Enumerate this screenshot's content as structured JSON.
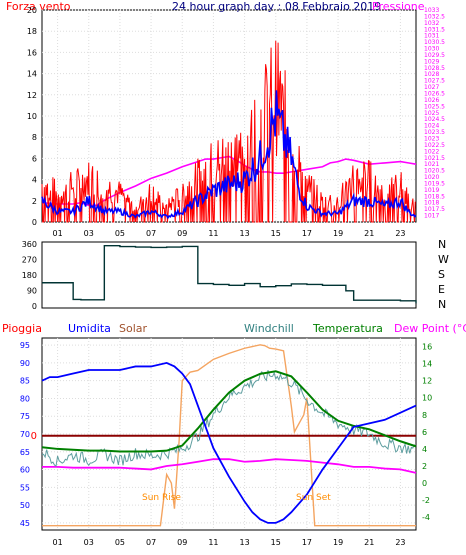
{
  "chart_data": [
    {
      "type": "line",
      "title": "24 hour graph day : 08 Febbraio 2019",
      "series": [
        {
          "name": "Forza vento",
          "color": "#ff0000"
        },
        {
          "name": "",
          "color": "#0000ff"
        },
        {
          "name": "Pressione",
          "color": "#ff00ff"
        }
      ],
      "x_ticks": [
        "01",
        "03",
        "05",
        "07",
        "09",
        "11",
        "13",
        "15",
        "17",
        "19",
        "21",
        "23"
      ],
      "x_range": [
        0,
        24
      ],
      "y_left": {
        "range": [
          0,
          20
        ],
        "ticks": [
          "0",
          "2",
          "4",
          "6",
          "8",
          "10",
          "12",
          "14",
          "16",
          "18",
          "20"
        ]
      },
      "y_right": {
        "range": [
          1016.5,
          1033
        ],
        "ticks": [
          "1017",
          "1017.5",
          "1018",
          "1018.5",
          "1019",
          "1019.5",
          "1020",
          "1020.5",
          "1021",
          "1021.5",
          "1022",
          "1022.5",
          "1023",
          "1023.5",
          "1024",
          "1024.5",
          "1025",
          "1025.5",
          "1026",
          "1026.5",
          "1027",
          "1027.5",
          "1028",
          "1028.5",
          "1029",
          "1029.5",
          "1030",
          "1030.5",
          "1031",
          "1031.5",
          "1032",
          "1032.5",
          "1033"
        ],
        "tick_color": "#ff00ff"
      },
      "pressure": {
        "x": [
          0,
          1,
          2,
          2.5,
          3,
          3.5,
          4,
          5,
          6,
          7,
          8,
          9,
          10,
          10.5,
          11,
          11.5,
          12,
          12.5,
          13,
          13.5,
          14,
          14.5,
          15,
          15.5,
          16,
          17,
          18,
          18.5,
          19,
          19.5,
          20,
          21,
          22,
          23,
          23.5,
          24
        ],
        "y": [
          1018,
          1017.9,
          1017.9,
          1018,
          1017.8,
          1017.8,
          1018.2,
          1018.8,
          1019.3,
          1019.9,
          1020.3,
          1020.8,
          1021.2,
          1021.4,
          1021.4,
          1021.5,
          1021.6,
          1021.3,
          1020.9,
          1020.6,
          1020.4,
          1020.4,
          1020.3,
          1020.3,
          1020.4,
          1020.6,
          1020.8,
          1021.1,
          1021.2,
          1021.4,
          1021.3,
          1021,
          1021.1,
          1021.2,
          1021.1,
          1021
        ]
      },
      "wind_envelope": {
        "x": [
          0,
          1,
          2,
          3,
          4,
          5,
          6,
          7,
          8,
          9,
          10,
          11,
          12,
          13,
          13.5,
          14,
          14.5,
          15,
          15.5,
          16,
          16.5,
          17,
          18,
          19,
          20,
          21,
          22,
          23,
          23.5,
          24
        ],
        "y": [
          5,
          4,
          5,
          6,
          5,
          4,
          2,
          4,
          2,
          4,
          6,
          8,
          9,
          10,
          12,
          14,
          16,
          18,
          15,
          12,
          8,
          5,
          3,
          3,
          6,
          6,
          4,
          5,
          3,
          2
        ]
      },
      "wind_avg": {
        "x": [
          0,
          1,
          2,
          3,
          4,
          5,
          6,
          7,
          8,
          9,
          10,
          11,
          12,
          13,
          13.5,
          14,
          14.5,
          15,
          15.5,
          16,
          16.5,
          17,
          18,
          19,
          20,
          21,
          22,
          23,
          23.5,
          24
        ],
        "y": [
          2,
          1,
          1,
          2,
          1,
          1,
          0.5,
          1,
          0.5,
          1,
          2,
          3,
          3.5,
          4,
          5,
          6,
          8,
          10,
          8,
          6,
          3,
          1.5,
          0.8,
          0.8,
          2,
          2,
          1.5,
          2,
          1,
          0.5
        ]
      }
    },
    {
      "type": "line",
      "series": [
        {
          "name": "",
          "color": "#003333"
        }
      ],
      "x_range": [
        0,
        24
      ],
      "y_range": [
        0,
        360
      ],
      "y_ticks": [
        "0",
        "90",
        "180",
        "270",
        "360"
      ],
      "right_labels": [
        "N",
        "W",
        "S",
        "E",
        "N"
      ],
      "direction": {
        "x": [
          0,
          1,
          2,
          2.5,
          3,
          4,
          5,
          6,
          7,
          8,
          9,
          9.5,
          10,
          11,
          12,
          13,
          14,
          15,
          16,
          17,
          18,
          19,
          19.5,
          20,
          21,
          22,
          23,
          24
        ],
        "y": [
          135,
          135,
          38,
          36,
          36,
          350,
          345,
          342,
          340,
          342,
          346,
          346,
          130,
          125,
          120,
          130,
          112,
          118,
          128,
          125,
          120,
          120,
          88,
          34,
          34,
          34,
          30,
          15
        ]
      }
    },
    {
      "type": "line",
      "labels": {
        "pioggia": "Pioggia",
        "umidita": "Umidita",
        "solar": "Solar",
        "windchill": "Windchill",
        "temperatura": "Temperatura",
        "dewpoint": "Dew Point (°C)"
      },
      "annotations": [
        "Sun Rise",
        "Sun Set"
      ],
      "x_range": [
        0,
        24
      ],
      "y_left": {
        "range": [
          43,
          97
        ],
        "ticks": [
          "45",
          "50",
          "55",
          "60",
          "65",
          "70",
          "75",
          "80",
          "85",
          "90",
          "95"
        ],
        "tick_color": "#0000ff"
      },
      "y_right": {
        "range": [
          -5.5,
          17
        ],
        "ticks": [
          "-4",
          "-2",
          "0",
          "2",
          "4",
          "6",
          "8",
          "10",
          "12",
          "14",
          "16"
        ],
        "tick_color": "#008000"
      },
      "rain_marker": {
        "label": "0",
        "value": 69.5
      },
      "humidity": {
        "x": [
          0,
          0.5,
          1,
          2,
          3,
          4,
          5,
          6,
          7,
          8,
          8.5,
          9,
          9.5,
          10,
          10.5,
          11,
          12,
          13,
          13.5,
          14,
          14.5,
          15,
          15.5,
          16,
          17,
          18,
          19,
          20,
          21,
          22,
          23,
          24
        ],
        "y": [
          85,
          86,
          86,
          87,
          88,
          88,
          88,
          89,
          89,
          90,
          89,
          87,
          84,
          78,
          72,
          66,
          58,
          51,
          48,
          46,
          45,
          45,
          46,
          48,
          53,
          60,
          66,
          72,
          73,
          74,
          76,
          78
        ]
      },
      "temperatura": {
        "x": [
          0,
          1,
          2,
          3,
          4,
          5,
          6,
          7,
          8,
          9,
          10,
          11,
          12,
          13,
          14,
          15,
          16,
          17,
          18,
          19,
          20,
          21,
          22,
          23,
          24
        ],
        "y": [
          4.2,
          4,
          3.9,
          3.8,
          3.8,
          3.7,
          3.7,
          3.7,
          3.8,
          4.4,
          6.4,
          8.6,
          10.6,
          12,
          12.8,
          13.1,
          12.5,
          10.6,
          8.6,
          7.3,
          6.7,
          6.3,
          5.6,
          4.9,
          4.3
        ]
      },
      "windchill": {
        "x": [
          0,
          1,
          2,
          3,
          4,
          5,
          6,
          7,
          8,
          9,
          10,
          11,
          12,
          13,
          14,
          15,
          16,
          17,
          18,
          19,
          20,
          21,
          22,
          23,
          24
        ],
        "y": [
          3.8,
          2.5,
          3.3,
          2.7,
          3.4,
          2.6,
          3.5,
          3.2,
          3.5,
          4,
          5.5,
          8,
          10.2,
          11.3,
          12.3,
          12.8,
          11.8,
          9.8,
          8.2,
          7,
          6.2,
          5.8,
          4.6,
          4.2,
          3.9
        ]
      },
      "dewpoint": {
        "x": [
          0,
          1,
          2,
          3,
          4,
          5,
          6,
          7,
          8,
          9,
          10,
          11,
          12,
          13,
          14,
          15,
          16,
          17,
          18,
          19,
          20,
          21,
          22,
          23,
          24
        ],
        "y": [
          1.9,
          1.9,
          1.8,
          1.8,
          1.8,
          1.8,
          1.7,
          1.6,
          2,
          2.2,
          2.5,
          2.8,
          2.8,
          2.5,
          2.6,
          2.8,
          2.7,
          2.6,
          2.4,
          2.2,
          1.9,
          1.9,
          1.7,
          1.6,
          1.2
        ]
      },
      "solar": {
        "x": [
          0,
          7.6,
          7.8,
          8,
          8.3,
          8.5,
          8.8,
          9,
          9.5,
          10,
          11,
          12,
          13,
          13.5,
          14,
          14.3,
          14.6,
          15,
          15.5,
          16,
          16.2,
          16.5,
          16.8,
          17,
          17.5,
          18,
          24
        ],
        "y": [
          -5,
          -5,
          -2,
          1,
          0,
          -3,
          5,
          12,
          13,
          13.2,
          14.5,
          15.2,
          15.8,
          16,
          16.2,
          16.1,
          15.8,
          15.7,
          15.5,
          9,
          6,
          7,
          8,
          10,
          -5,
          -5,
          -5
        ]
      }
    }
  ]
}
